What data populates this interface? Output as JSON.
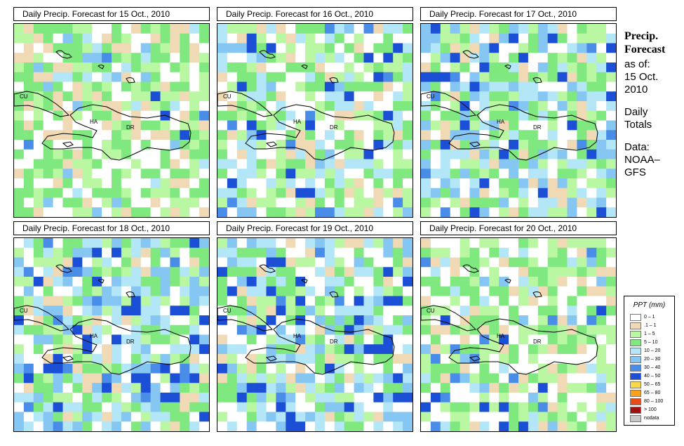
{
  "panels": [
    {
      "title": "Daily Precip. Forecast for  15 Oct., 2010",
      "seed": 11,
      "wet": 0.9
    },
    {
      "title": "Daily Precip. Forecast for  16 Oct., 2010",
      "seed": 23,
      "wet": 1.1
    },
    {
      "title": "Daily Precip. Forecast for  17 Oct., 2010",
      "seed": 37,
      "wet": 1.4
    },
    {
      "title": "Daily Precip. Forecast for  18 Oct., 2010",
      "seed": 41,
      "wet": 1.45
    },
    {
      "title": "Daily Precip. Forecast for  19 Oct., 2010",
      "seed": 53,
      "wet": 1.35
    },
    {
      "title": "Daily Precip. Forecast for  20 Oct., 2010",
      "seed": 67,
      "wet": 0.95
    }
  ],
  "map_labels": {
    "cuba": "CU",
    "haiti": "HA",
    "dominican_republic": "DR"
  },
  "side": {
    "title_line1": "Precip.",
    "title_line2": "Forecast",
    "asof": "as of:",
    "date_line1": "15 Oct.",
    "date_line2": "2010",
    "totals_line1": "Daily",
    "totals_line2": "Totals",
    "data_line1": "Data:",
    "data_line2": "NOAA–",
    "data_line3": "GFS"
  },
  "legend": {
    "title": "PPT (mm)",
    "items": [
      {
        "label": "0 – 1",
        "color": "#ffffff"
      },
      {
        "label": ".1 – 1",
        "color": "#f0d9b5"
      },
      {
        "label": "1 – 5",
        "color": "#b9f7a3"
      },
      {
        "label": "5 – 10",
        "color": "#7fe87f"
      },
      {
        "label": "10 – 20",
        "color": "#b3e6f7"
      },
      {
        "label": "20 – 30",
        "color": "#86c6f2"
      },
      {
        "label": "30 – 40",
        "color": "#4a8de8"
      },
      {
        "label": "40 – 50",
        "color": "#1a4fd6"
      },
      {
        "label": "50 – 65",
        "color": "#f7d84a"
      },
      {
        "label": "65 – 80",
        "color": "#f7a21a"
      },
      {
        "label": "80 – 100",
        "color": "#e84a1a"
      },
      {
        "label": "> 100",
        "color": "#a01010"
      },
      {
        "label": "nodata",
        "color": "#c8c8c8"
      }
    ]
  }
}
